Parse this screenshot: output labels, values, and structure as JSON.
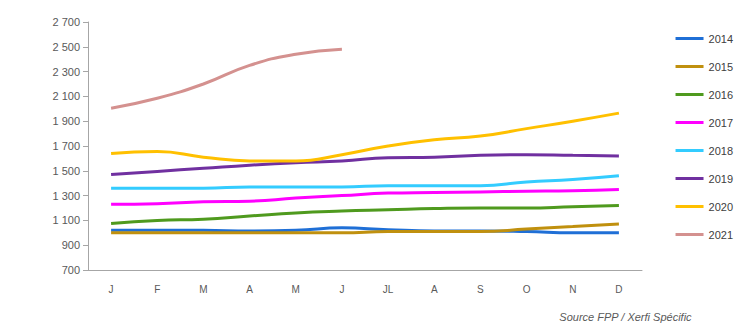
{
  "chart_data": {
    "type": "line",
    "categories": [
      "J",
      "F",
      "M",
      "A",
      "M",
      "J",
      "JL",
      "A",
      "S",
      "O",
      "N",
      "D"
    ],
    "series": [
      {
        "name": "2014",
        "color": "#1f6fd6",
        "values": [
          1020,
          1020,
          1020,
          1015,
          1020,
          1040,
          1025,
          1015,
          1015,
          1010,
          1000,
          1000
        ]
      },
      {
        "name": "2015",
        "color": "#c0900e",
        "values": [
          1000,
          1000,
          1000,
          1000,
          1000,
          1000,
          1010,
          1010,
          1010,
          1030,
          1050,
          1070
        ]
      },
      {
        "name": "2016",
        "color": "#4f9a1e",
        "values": [
          1075,
          1100,
          1110,
          1135,
          1160,
          1175,
          1185,
          1195,
          1200,
          1200,
          1210,
          1220
        ]
      },
      {
        "name": "2017",
        "color": "#ff00ff",
        "values": [
          1230,
          1235,
          1250,
          1255,
          1280,
          1300,
          1320,
          1325,
          1330,
          1335,
          1340,
          1350
        ]
      },
      {
        "name": "2018",
        "color": "#33ccff",
        "values": [
          1360,
          1360,
          1360,
          1370,
          1370,
          1370,
          1380,
          1380,
          1380,
          1410,
          1430,
          1460
        ]
      },
      {
        "name": "2019",
        "color": "#7030a0",
        "values": [
          1470,
          1495,
          1520,
          1545,
          1565,
          1580,
          1605,
          1610,
          1625,
          1630,
          1625,
          1620
        ]
      },
      {
        "name": "2020",
        "color": "#ffc000",
        "values": [
          1640,
          1655,
          1610,
          1580,
          1580,
          1630,
          1700,
          1750,
          1780,
          1840,
          1900,
          1965
        ]
      },
      {
        "name": "2021",
        "color": "#d4918f",
        "values": [
          2005,
          2085,
          2200,
          2350,
          2440,
          2480,
          null,
          null,
          null,
          null,
          null,
          null
        ]
      }
    ],
    "ylim": [
      700,
      2700
    ],
    "yticks": [
      700,
      900,
      {
        "value": 1100,
        "label": "1 100"
      },
      {
        "value": 1300,
        "label": "1 300"
      },
      {
        "value": 1500,
        "label": "1 500"
      },
      {
        "value": 1700,
        "label": "1 700"
      },
      {
        "value": 1900,
        "label": "1 900"
      },
      {
        "value": 2100,
        "label": "2 100"
      },
      {
        "value": 2300,
        "label": "2 300"
      },
      {
        "value": 2500,
        "label": "2 500"
      },
      {
        "value": 2700,
        "label": "2 700"
      }
    ],
    "grid": false,
    "legend": "right",
    "annotation": "Source FPP / Xerfi Spécific"
  }
}
